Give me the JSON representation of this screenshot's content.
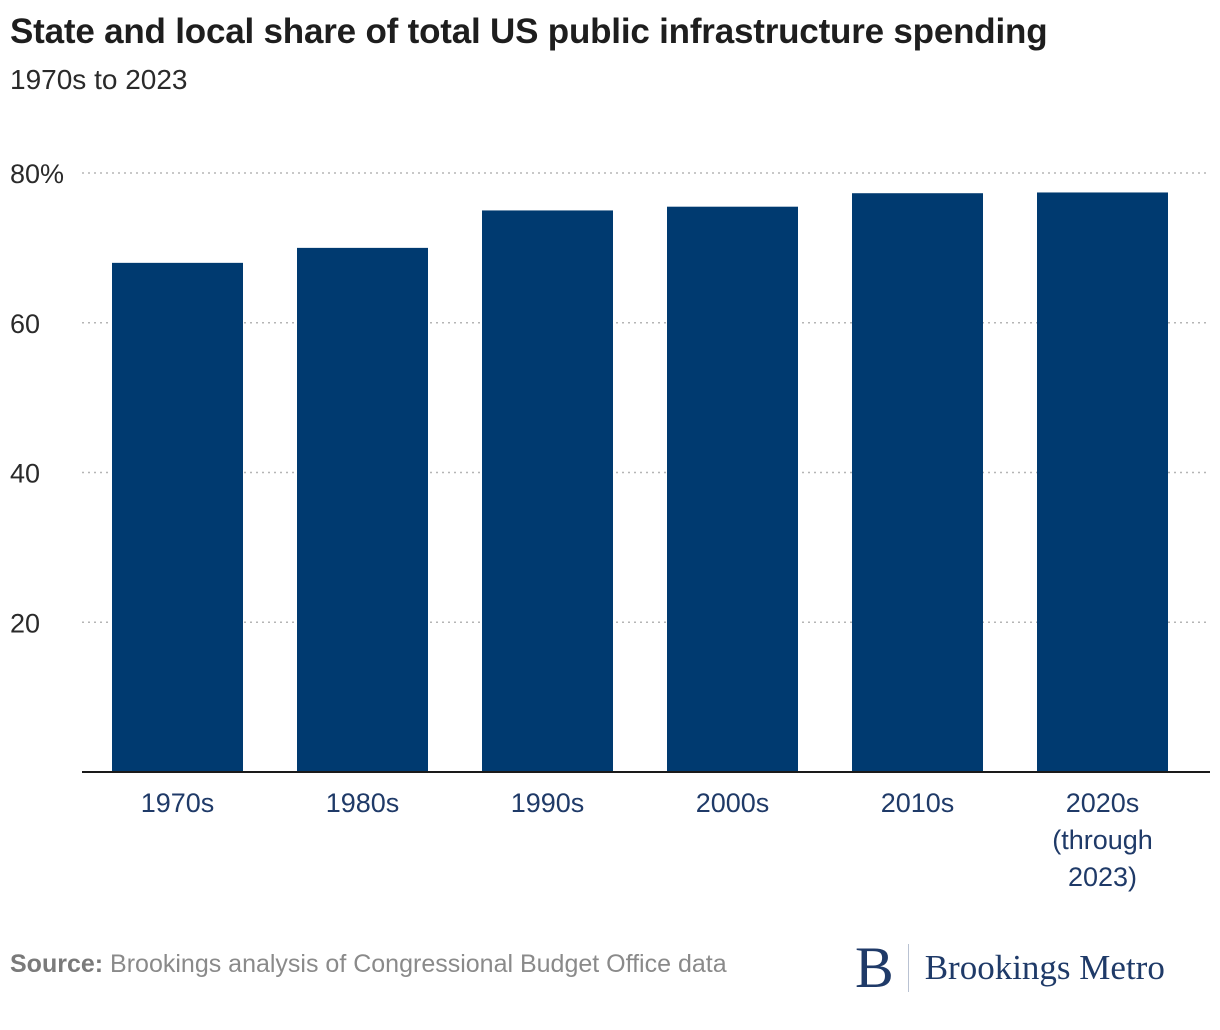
{
  "header": {
    "title": "State and local share of total US public infrastructure spending",
    "subtitle": "1970s to 2023"
  },
  "chart_data": {
    "type": "bar",
    "title": "State and local share of total US public infrastructure spending",
    "subtitle": "1970s to 2023",
    "xlabel": "",
    "ylabel": "",
    "categories": [
      "1970s",
      "1980s",
      "1990s",
      "2000s",
      "2010s",
      "2020s (through 2023)"
    ],
    "category_label_lines": [
      [
        "1970s"
      ],
      [
        "1980s"
      ],
      [
        "1990s"
      ],
      [
        "2000s"
      ],
      [
        "2010s"
      ],
      [
        "2020s",
        "(through",
        "2023)"
      ]
    ],
    "values": [
      68,
      70,
      75,
      75.5,
      77.3,
      77.4
    ],
    "ylim": [
      0,
      80
    ],
    "yticks": [
      20,
      40,
      60,
      80
    ],
    "ytick_labels": [
      "20",
      "40",
      "60",
      "80%"
    ],
    "grid": true,
    "bar_color": "#003a70",
    "axis_label_color": "#1f3a68"
  },
  "footer": {
    "source_label": "Source:",
    "source_text": "Brookings analysis of Congressional Budget Office data",
    "logo_letter": "B",
    "logo_text": "Brookings Metro"
  }
}
